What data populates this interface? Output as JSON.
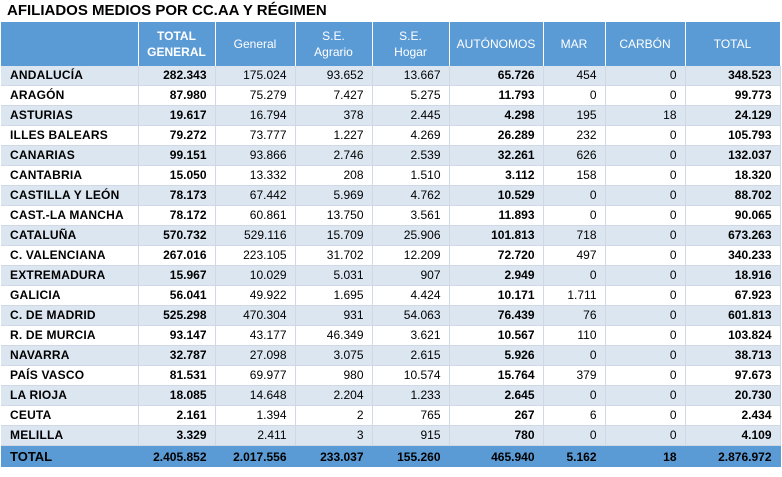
{
  "title": "AFILIADOS MEDIOS POR CC.AA Y RÉGIMEN",
  "columns": [
    "",
    "TOTAL GENERAL",
    "General",
    "S.E. Agrario",
    "S.E. Hogar",
    "AUTÓNOMOS",
    "MAR",
    "CARBÓN",
    "TOTAL"
  ],
  "header": {
    "c1_l1": "TOTAL",
    "c1_l2": "GENERAL",
    "c2": "General",
    "c3_l1": "S.E.",
    "c3_l2": "Agrario",
    "c4_l1": "S.E.",
    "c4_l2": "Hogar",
    "c5": "AUTÓNOMOS",
    "c6": "MAR",
    "c7": "CARBÓN",
    "c8": "TOTAL"
  },
  "rows": [
    [
      "ANDALUCÍA",
      "282.343",
      "175.024",
      "93.652",
      "13.667",
      "65.726",
      "454",
      "0",
      "348.523"
    ],
    [
      "ARAGÓN",
      "87.980",
      "75.279",
      "7.427",
      "5.275",
      "11.793",
      "0",
      "0",
      "99.773"
    ],
    [
      "ASTURIAS",
      "19.617",
      "16.794",
      "378",
      "2.445",
      "4.298",
      "195",
      "18",
      "24.129"
    ],
    [
      "ILLES BALEARS",
      "79.272",
      "73.777",
      "1.227",
      "4.269",
      "26.289",
      "232",
      "0",
      "105.793"
    ],
    [
      "CANARIAS",
      "99.151",
      "93.866",
      "2.746",
      "2.539",
      "32.261",
      "626",
      "0",
      "132.037"
    ],
    [
      "CANTABRIA",
      "15.050",
      "13.332",
      "208",
      "1.510",
      "3.112",
      "158",
      "0",
      "18.320"
    ],
    [
      "CASTILLA Y LEÓN",
      "78.173",
      "67.442",
      "5.969",
      "4.762",
      "10.529",
      "0",
      "0",
      "88.702"
    ],
    [
      "CAST.-LA MANCHA",
      "78.172",
      "60.861",
      "13.750",
      "3.561",
      "11.893",
      "0",
      "0",
      "90.065"
    ],
    [
      "CATALUÑA",
      "570.732",
      "529.116",
      "15.709",
      "25.906",
      "101.813",
      "718",
      "0",
      "673.263"
    ],
    [
      "C. VALENCIANA",
      "267.016",
      "223.105",
      "31.702",
      "12.209",
      "72.720",
      "497",
      "0",
      "340.233"
    ],
    [
      "EXTREMADURA",
      "15.967",
      "10.029",
      "5.031",
      "907",
      "2.949",
      "0",
      "0",
      "18.916"
    ],
    [
      "GALICIA",
      "56.041",
      "49.922",
      "1.695",
      "4.424",
      "10.171",
      "1.711",
      "0",
      "67.923"
    ],
    [
      "C. DE MADRID",
      "525.298",
      "470.304",
      "931",
      "54.063",
      "76.439",
      "76",
      "0",
      "601.813"
    ],
    [
      "R. DE MURCIA",
      "93.147",
      "43.177",
      "46.349",
      "3.621",
      "10.567",
      "110",
      "0",
      "103.824"
    ],
    [
      "NAVARRA",
      "32.787",
      "27.098",
      "3.075",
      "2.615",
      "5.926",
      "0",
      "0",
      "38.713"
    ],
    [
      "PAÍS VASCO",
      "81.531",
      "69.977",
      "980",
      "10.574",
      "15.764",
      "379",
      "0",
      "97.673"
    ],
    [
      "LA RIOJA",
      "18.085",
      "14.648",
      "2.204",
      "1.233",
      "2.645",
      "0",
      "0",
      "20.730"
    ],
    [
      "CEUTA",
      "2.161",
      "1.394",
      "2",
      "765",
      "267",
      "6",
      "0",
      "2.434"
    ],
    [
      "MELILLA",
      "3.329",
      "2.411",
      "3",
      "915",
      "780",
      "0",
      "0",
      "4.109"
    ]
  ],
  "total_row": [
    "TOTAL",
    "2.405.852",
    "2.017.556",
    "233.037",
    "155.260",
    "465.940",
    "5.162",
    "18",
    "2.876.972"
  ],
  "colors": {
    "header_bg": "#5b9bd5",
    "row_shade": "#dce6f1",
    "header_text": "#ffffff"
  }
}
